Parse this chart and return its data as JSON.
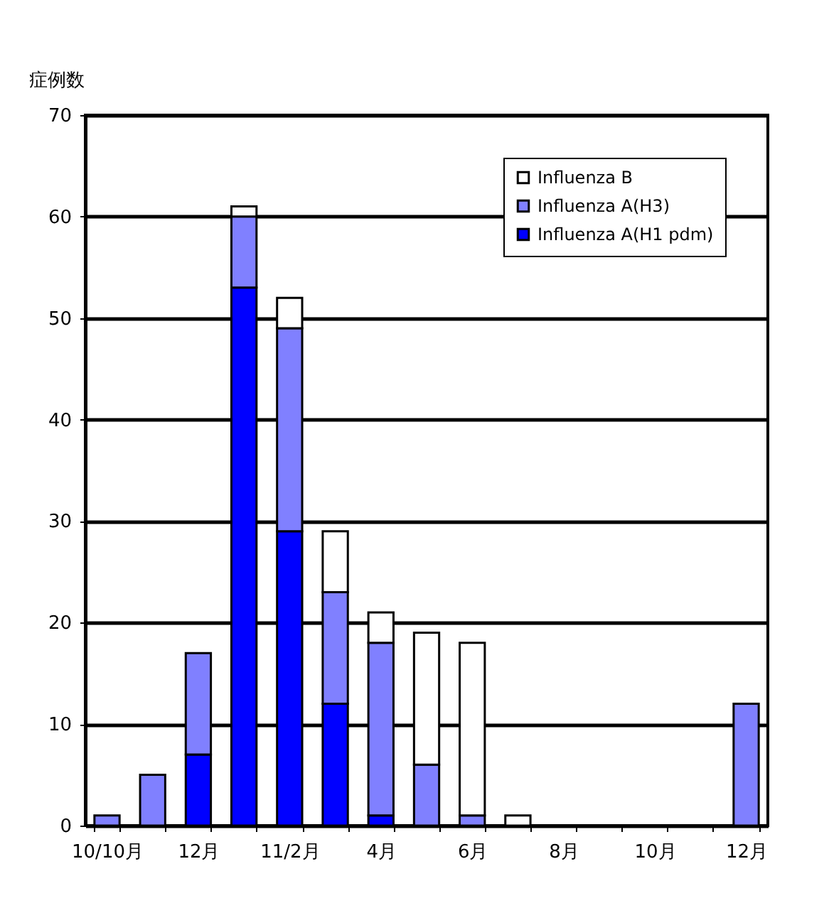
{
  "chart_data": {
    "type": "bar",
    "ylabel": "症例数",
    "categories": [
      "10/10月",
      null,
      "12月",
      null,
      "11/2月",
      null,
      "4月",
      null,
      "6月",
      null,
      "8月",
      null,
      "10月",
      null,
      "12月"
    ],
    "stacked": true,
    "series": [
      {
        "name": "Influenza A(H1 pdm)",
        "color": "#0000ff",
        "values": [
          0,
          0,
          7,
          53,
          29,
          12,
          1,
          0,
          0,
          0,
          0,
          0,
          0,
          0,
          0
        ]
      },
      {
        "name": "Influenza A(H3)",
        "color": "#8080ff",
        "values": [
          1,
          5,
          10,
          7,
          20,
          11,
          17,
          6,
          1,
          0,
          0,
          0,
          0,
          0,
          12
        ]
      },
      {
        "name": "Influenza B",
        "color": "#ffffff",
        "values": [
          0,
          0,
          0,
          1,
          3,
          6,
          3,
          13,
          17,
          1,
          0,
          0,
          0,
          0,
          0
        ]
      }
    ],
    "ylim": [
      0,
      70
    ],
    "yticks": [
      0,
      10,
      20,
      30,
      40,
      50,
      60,
      70
    ],
    "grid": "y",
    "legend": "top right"
  }
}
